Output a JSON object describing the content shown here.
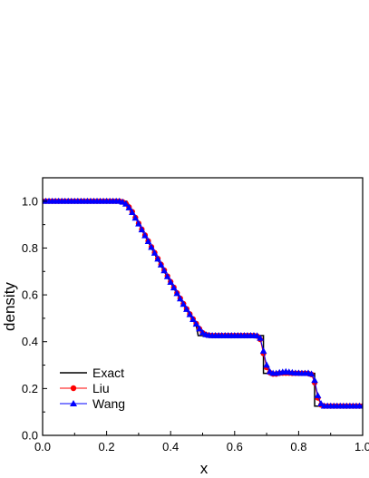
{
  "chart_data": {
    "type": "line",
    "title": "",
    "xlabel": "x",
    "ylabel": "density",
    "xlim": [
      0.0,
      1.0
    ],
    "ylim": [
      0.0,
      1.1
    ],
    "x_ticks": [
      "0.0",
      "0.2",
      "0.4",
      "0.6",
      "0.8",
      "1.0"
    ],
    "y_ticks": [
      "0.0",
      "0.2",
      "0.4",
      "0.6",
      "0.8",
      "1.0"
    ],
    "grid": false,
    "legend_position": "bottom-left",
    "series": [
      {
        "name": "Exact",
        "color": "#000000",
        "marker": "none",
        "points": [
          [
            0.0,
            1.0
          ],
          [
            0.263,
            1.0
          ],
          [
            0.28,
            0.96
          ],
          [
            0.3,
            0.905
          ],
          [
            0.32,
            0.852
          ],
          [
            0.34,
            0.8
          ],
          [
            0.36,
            0.75
          ],
          [
            0.38,
            0.7
          ],
          [
            0.4,
            0.652
          ],
          [
            0.42,
            0.605
          ],
          [
            0.44,
            0.558
          ],
          [
            0.46,
            0.513
          ],
          [
            0.48,
            0.47
          ],
          [
            0.486,
            0.426
          ],
          [
            0.69,
            0.426
          ],
          [
            0.69,
            0.265
          ],
          [
            0.85,
            0.265
          ],
          [
            0.85,
            0.125
          ],
          [
            1.0,
            0.125
          ]
        ]
      },
      {
        "name": "Liu",
        "color": "#ff0000",
        "marker": "circle",
        "points": [
          [
            0.0,
            1.0
          ],
          [
            0.01,
            1.0
          ],
          [
            0.02,
            1.0
          ],
          [
            0.03,
            1.0
          ],
          [
            0.04,
            1.0
          ],
          [
            0.05,
            1.0
          ],
          [
            0.06,
            1.0
          ],
          [
            0.07,
            1.0
          ],
          [
            0.08,
            1.0
          ],
          [
            0.09,
            1.0
          ],
          [
            0.1,
            1.0
          ],
          [
            0.11,
            1.0
          ],
          [
            0.12,
            1.0
          ],
          [
            0.13,
            1.0
          ],
          [
            0.14,
            1.0
          ],
          [
            0.15,
            1.0
          ],
          [
            0.16,
            1.0
          ],
          [
            0.17,
            1.0
          ],
          [
            0.18,
            1.0
          ],
          [
            0.19,
            1.0
          ],
          [
            0.2,
            1.0
          ],
          [
            0.21,
            1.0
          ],
          [
            0.22,
            1.0
          ],
          [
            0.23,
            1.0
          ],
          [
            0.24,
            1.0
          ],
          [
            0.25,
            0.997
          ],
          [
            0.26,
            0.99
          ],
          [
            0.27,
            0.975
          ],
          [
            0.28,
            0.955
          ],
          [
            0.29,
            0.93
          ],
          [
            0.3,
            0.905
          ],
          [
            0.31,
            0.88
          ],
          [
            0.32,
            0.855
          ],
          [
            0.33,
            0.83
          ],
          [
            0.34,
            0.805
          ],
          [
            0.35,
            0.78
          ],
          [
            0.36,
            0.755
          ],
          [
            0.37,
            0.73
          ],
          [
            0.38,
            0.705
          ],
          [
            0.39,
            0.68
          ],
          [
            0.4,
            0.656
          ],
          [
            0.41,
            0.632
          ],
          [
            0.42,
            0.608
          ],
          [
            0.43,
            0.585
          ],
          [
            0.44,
            0.562
          ],
          [
            0.45,
            0.54
          ],
          [
            0.46,
            0.518
          ],
          [
            0.47,
            0.497
          ],
          [
            0.48,
            0.477
          ],
          [
            0.49,
            0.455
          ],
          [
            0.5,
            0.438
          ],
          [
            0.51,
            0.43
          ],
          [
            0.52,
            0.427
          ],
          [
            0.53,
            0.426
          ],
          [
            0.54,
            0.426
          ],
          [
            0.55,
            0.426
          ],
          [
            0.56,
            0.426
          ],
          [
            0.57,
            0.426
          ],
          [
            0.58,
            0.426
          ],
          [
            0.59,
            0.426
          ],
          [
            0.6,
            0.426
          ],
          [
            0.61,
            0.426
          ],
          [
            0.62,
            0.426
          ],
          [
            0.63,
            0.426
          ],
          [
            0.64,
            0.426
          ],
          [
            0.65,
            0.426
          ],
          [
            0.66,
            0.426
          ],
          [
            0.67,
            0.424
          ],
          [
            0.68,
            0.41
          ],
          [
            0.69,
            0.35
          ],
          [
            0.7,
            0.29
          ],
          [
            0.71,
            0.268
          ],
          [
            0.72,
            0.262
          ],
          [
            0.73,
            0.262
          ],
          [
            0.74,
            0.265
          ],
          [
            0.75,
            0.266
          ],
          [
            0.76,
            0.266
          ],
          [
            0.77,
            0.266
          ],
          [
            0.78,
            0.265
          ],
          [
            0.79,
            0.265
          ],
          [
            0.8,
            0.265
          ],
          [
            0.81,
            0.265
          ],
          [
            0.82,
            0.265
          ],
          [
            0.83,
            0.264
          ],
          [
            0.84,
            0.26
          ],
          [
            0.85,
            0.225
          ],
          [
            0.86,
            0.16
          ],
          [
            0.87,
            0.13
          ],
          [
            0.88,
            0.125
          ],
          [
            0.89,
            0.125
          ],
          [
            0.9,
            0.125
          ],
          [
            0.91,
            0.125
          ],
          [
            0.92,
            0.125
          ],
          [
            0.93,
            0.125
          ],
          [
            0.94,
            0.125
          ],
          [
            0.95,
            0.125
          ],
          [
            0.96,
            0.125
          ],
          [
            0.97,
            0.125
          ],
          [
            0.98,
            0.125
          ],
          [
            0.99,
            0.125
          ],
          [
            1.0,
            0.125
          ]
        ]
      },
      {
        "name": "Wang",
        "color": "#0000ff",
        "marker": "triangle",
        "points": [
          [
            0.0,
            1.0
          ],
          [
            0.01,
            1.0
          ],
          [
            0.02,
            1.0
          ],
          [
            0.03,
            1.0
          ],
          [
            0.04,
            1.0
          ],
          [
            0.05,
            1.0
          ],
          [
            0.06,
            1.0
          ],
          [
            0.07,
            1.0
          ],
          [
            0.08,
            1.0
          ],
          [
            0.09,
            1.0
          ],
          [
            0.1,
            1.0
          ],
          [
            0.11,
            1.0
          ],
          [
            0.12,
            1.0
          ],
          [
            0.13,
            1.0
          ],
          [
            0.14,
            1.0
          ],
          [
            0.15,
            1.0
          ],
          [
            0.16,
            1.0
          ],
          [
            0.17,
            1.0
          ],
          [
            0.18,
            1.0
          ],
          [
            0.19,
            1.0
          ],
          [
            0.2,
            1.0
          ],
          [
            0.21,
            1.0
          ],
          [
            0.22,
            1.0
          ],
          [
            0.23,
            1.0
          ],
          [
            0.24,
            1.0
          ],
          [
            0.25,
            0.996
          ],
          [
            0.26,
            0.988
          ],
          [
            0.27,
            0.972
          ],
          [
            0.28,
            0.952
          ],
          [
            0.29,
            0.928
          ],
          [
            0.3,
            0.903
          ],
          [
            0.31,
            0.878
          ],
          [
            0.32,
            0.853
          ],
          [
            0.33,
            0.828
          ],
          [
            0.34,
            0.803
          ],
          [
            0.35,
            0.778
          ],
          [
            0.36,
            0.753
          ],
          [
            0.37,
            0.728
          ],
          [
            0.38,
            0.703
          ],
          [
            0.39,
            0.678
          ],
          [
            0.4,
            0.654
          ],
          [
            0.41,
            0.63
          ],
          [
            0.42,
            0.606
          ],
          [
            0.43,
            0.583
          ],
          [
            0.44,
            0.56
          ],
          [
            0.45,
            0.538
          ],
          [
            0.46,
            0.516
          ],
          [
            0.47,
            0.495
          ],
          [
            0.48,
            0.475
          ],
          [
            0.49,
            0.455
          ],
          [
            0.5,
            0.438
          ],
          [
            0.51,
            0.43
          ],
          [
            0.52,
            0.427
          ],
          [
            0.53,
            0.426
          ],
          [
            0.54,
            0.426
          ],
          [
            0.55,
            0.426
          ],
          [
            0.56,
            0.426
          ],
          [
            0.57,
            0.426
          ],
          [
            0.58,
            0.426
          ],
          [
            0.59,
            0.426
          ],
          [
            0.6,
            0.426
          ],
          [
            0.61,
            0.426
          ],
          [
            0.62,
            0.426
          ],
          [
            0.63,
            0.426
          ],
          [
            0.64,
            0.426
          ],
          [
            0.65,
            0.426
          ],
          [
            0.66,
            0.426
          ],
          [
            0.67,
            0.425
          ],
          [
            0.68,
            0.415
          ],
          [
            0.69,
            0.36
          ],
          [
            0.7,
            0.3
          ],
          [
            0.71,
            0.272
          ],
          [
            0.72,
            0.265
          ],
          [
            0.73,
            0.265
          ],
          [
            0.74,
            0.268
          ],
          [
            0.75,
            0.27
          ],
          [
            0.76,
            0.272
          ],
          [
            0.77,
            0.27
          ],
          [
            0.78,
            0.268
          ],
          [
            0.79,
            0.266
          ],
          [
            0.8,
            0.266
          ],
          [
            0.81,
            0.265
          ],
          [
            0.82,
            0.265
          ],
          [
            0.83,
            0.266
          ],
          [
            0.84,
            0.262
          ],
          [
            0.85,
            0.235
          ],
          [
            0.86,
            0.17
          ],
          [
            0.87,
            0.135
          ],
          [
            0.88,
            0.125
          ],
          [
            0.89,
            0.125
          ],
          [
            0.9,
            0.125
          ],
          [
            0.91,
            0.125
          ],
          [
            0.92,
            0.125
          ],
          [
            0.93,
            0.125
          ],
          [
            0.94,
            0.125
          ],
          [
            0.95,
            0.125
          ],
          [
            0.96,
            0.125
          ],
          [
            0.97,
            0.125
          ],
          [
            0.98,
            0.125
          ],
          [
            0.99,
            0.125
          ],
          [
            1.0,
            0.125
          ]
        ]
      }
    ]
  }
}
